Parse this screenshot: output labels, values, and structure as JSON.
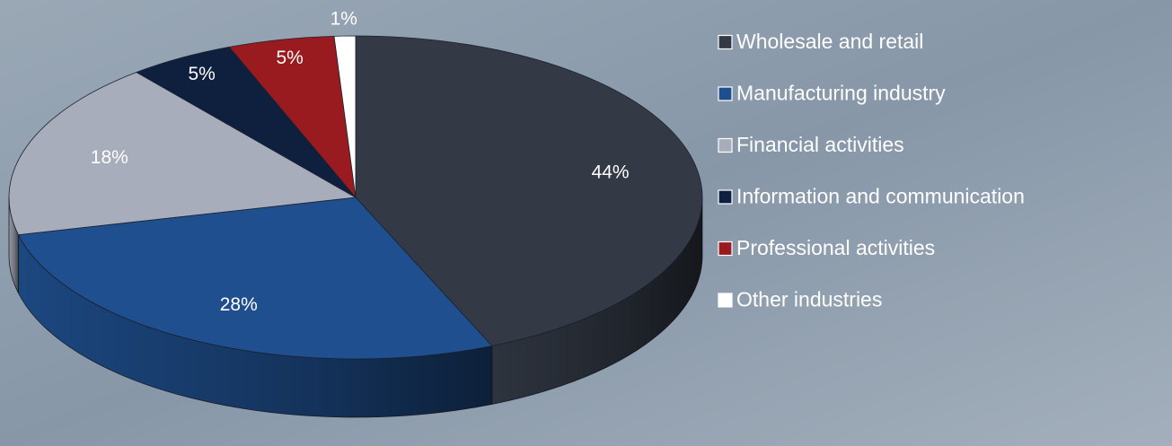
{
  "chart_data": {
    "type": "pie",
    "categories": [
      "Wholesale and retail",
      "Manufacturing industry",
      "Financial activities",
      "Information and communication",
      "Professional activities",
      "Other industries"
    ],
    "values": [
      44,
      28,
      18,
      5,
      5,
      1
    ],
    "value_labels": [
      "44%",
      "28%",
      "18%",
      "5%",
      "5%",
      "1%"
    ],
    "colors": [
      "#333a46",
      "#1f4f8e",
      "#a7adba",
      "#0f1f3e",
      "#9a1b1f",
      "#ffffff"
    ],
    "legend": "right"
  }
}
